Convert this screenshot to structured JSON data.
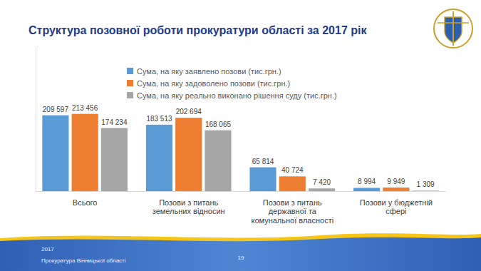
{
  "chart_data": {
    "type": "bar",
    "title": "Структура позовної роботи прокуратури області за 2017 рік",
    "categories": [
      "Всього",
      "Позови з питань земельних відносин",
      "Позови з питань державної та комунальної власності",
      "Позови у бюджетній сфері"
    ],
    "series": [
      {
        "name": "Сума, на яку заявлено позови (тис.грн.)",
        "color": "#5b9bd5",
        "values": [
          209597,
          183513,
          65814,
          8994
        ],
        "value_labels": [
          "209 597",
          "183 513",
          "65 814",
          "8 994"
        ]
      },
      {
        "name": "Сума, на яку задоволено позови (тис.грн.)",
        "color": "#ed7d31",
        "values": [
          213456,
          202694,
          40724,
          9949
        ],
        "value_labels": [
          "213 456",
          "202 694",
          "40 724",
          "9 949"
        ]
      },
      {
        "name": "Сума, на яку реально виконано рішення суду (тис.грн.)",
        "color": "#a5a5a5",
        "values": [
          174234,
          168065,
          7420,
          1309
        ],
        "value_labels": [
          "174 234",
          "168 065",
          "7 420",
          "1 309"
        ]
      }
    ],
    "ylim": [
      0,
      400000
    ],
    "grid": false,
    "legend": "top-left",
    "data_labels": true,
    "tick_labels": "x",
    "annotations": [
      "2017",
      "Прокуратура Вінницької області",
      "19"
    ]
  }
}
